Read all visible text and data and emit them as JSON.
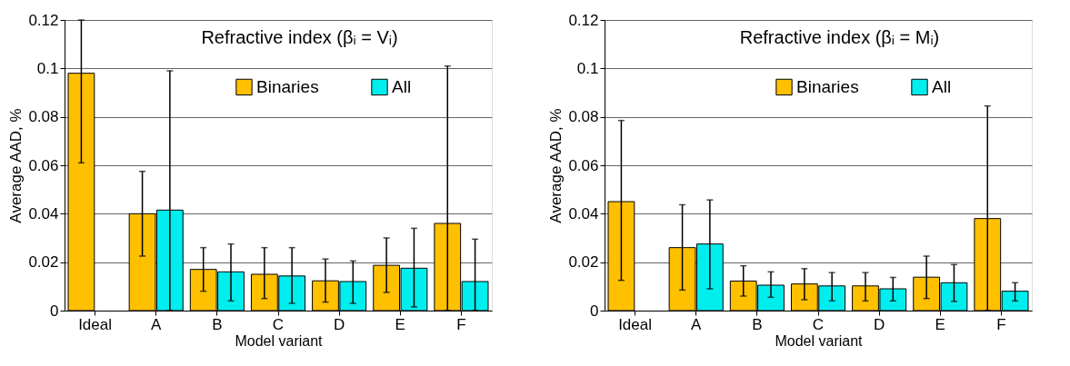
{
  "chart_data": [
    {
      "type": "bar",
      "title": "Refractive index (βᵢ = Vᵢ)",
      "xlabel": "Model variant",
      "ylabel": "Average AAD, %",
      "categories": [
        "Ideal",
        "A",
        "B",
        "C",
        "D",
        "E",
        "F"
      ],
      "series": [
        {
          "name": "Binaries",
          "color": "#ffc000",
          "values": [
            0.098,
            0.04,
            0.017,
            0.015,
            0.0123,
            0.0187,
            0.036
          ],
          "errors": [
            [
              0.061,
              0.12
            ],
            [
              0.0225,
              0.0575
            ],
            [
              0.008,
              0.026
            ],
            [
              0.005,
              0.026
            ],
            [
              0.0035,
              0.0213
            ],
            [
              0.0075,
              0.03
            ],
            [
              0,
              0.101
            ]
          ]
        },
        {
          "name": "All",
          "color": "#00eeee",
          "values": [
            null,
            0.0415,
            0.016,
            0.0143,
            0.012,
            0.0175,
            0.012
          ],
          "errors": [
            null,
            [
              0,
              0.099
            ],
            [
              0.004,
              0.0275
            ],
            [
              0.003,
              0.026
            ],
            [
              0.003,
              0.0205
            ],
            [
              0.0015,
              0.034
            ],
            [
              0,
              0.0295
            ]
          ]
        }
      ],
      "ylim": [
        0,
        0.12
      ],
      "yticks": [
        0,
        0.02,
        0.04,
        0.06,
        0.08,
        0.1,
        0.12
      ],
      "grid": "y",
      "legend": "top"
    },
    {
      "type": "bar",
      "title": "Refractive index (βᵢ = Mᵢ)",
      "xlabel": "Model variant",
      "ylabel": "Average AAD, %",
      "categories": [
        "Ideal",
        "A",
        "B",
        "C",
        "D",
        "E",
        "F"
      ],
      "series": [
        {
          "name": "Binaries",
          "color": "#ffc000",
          "values": [
            0.045,
            0.026,
            0.0122,
            0.011,
            0.0102,
            0.0138,
            0.038
          ],
          "errors": [
            [
              0.0125,
              0.0785
            ],
            [
              0.0085,
              0.0437
            ],
            [
              0.006,
              0.0185
            ],
            [
              0.0045,
              0.0173
            ],
            [
              0.004,
              0.0157
            ],
            [
              0.005,
              0.0225
            ],
            [
              0,
              0.0845
            ]
          ]
        },
        {
          "name": "All",
          "color": "#00eeee",
          "values": [
            null,
            0.0275,
            0.0105,
            0.0102,
            0.009,
            0.0115,
            0.008
          ],
          "errors": [
            null,
            [
              0.009,
              0.0457
            ],
            [
              0.0055,
              0.016
            ],
            [
              0.004,
              0.0157
            ],
            [
              0.004,
              0.0137
            ],
            [
              0.0038,
              0.019
            ],
            [
              0.004,
              0.0115
            ]
          ]
        }
      ],
      "ylim": [
        0,
        0.12
      ],
      "yticks": [
        0,
        0.02,
        0.04,
        0.06,
        0.08,
        0.1,
        0.12
      ],
      "grid": "y",
      "legend": "top"
    }
  ]
}
